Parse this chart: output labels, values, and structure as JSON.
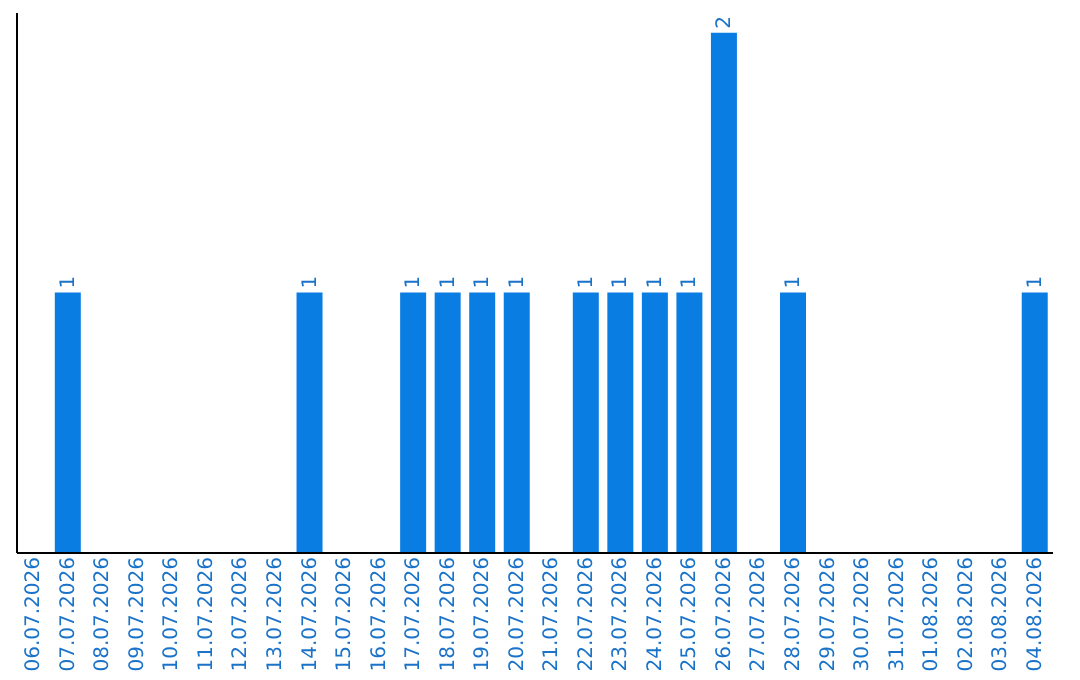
{
  "chart_data": {
    "type": "bar",
    "categories": [
      "06.07.2026",
      "07.07.2026",
      "08.07.2026",
      "09.07.2026",
      "10.07.2026",
      "11.07.2026",
      "12.07.2026",
      "13.07.2026",
      "14.07.2026",
      "15.07.2026",
      "16.07.2026",
      "17.07.2026",
      "18.07.2026",
      "19.07.2026",
      "20.07.2026",
      "21.07.2026",
      "22.07.2026",
      "23.07.2026",
      "24.07.2026",
      "25.07.2026",
      "26.07.2026",
      "27.07.2026",
      "28.07.2026",
      "29.07.2026",
      "30.07.2026",
      "31.07.2026",
      "01.08.2026",
      "02.08.2026",
      "03.08.2026",
      "04.08.2026"
    ],
    "values": [
      0,
      1,
      0,
      0,
      0,
      0,
      0,
      0,
      1,
      0,
      0,
      1,
      1,
      1,
      1,
      0,
      1,
      1,
      1,
      1,
      2,
      0,
      1,
      0,
      0,
      0,
      0,
      0,
      0,
      1
    ],
    "value_labels": [
      null,
      "1",
      null,
      null,
      null,
      null,
      null,
      null,
      "1",
      null,
      null,
      "1",
      "1",
      "1",
      "1",
      null,
      "1",
      "1",
      "1",
      "1",
      "2",
      null,
      "1",
      null,
      null,
      null,
      null,
      null,
      null,
      "1"
    ],
    "color": "#0a7de3",
    "ylim": [
      0,
      2.08
    ],
    "tick_labels": "x",
    "grid": false
  }
}
